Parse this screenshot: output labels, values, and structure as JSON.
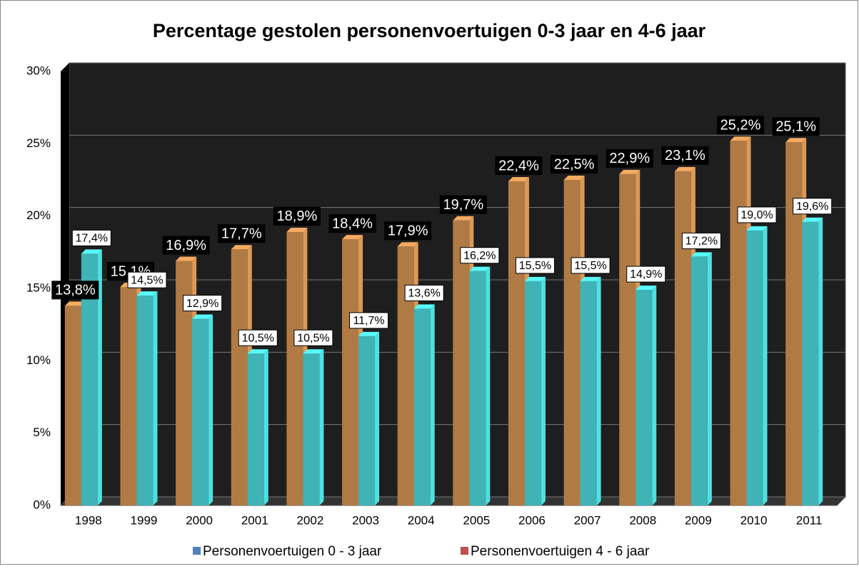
{
  "chart_data": {
    "type": "bar",
    "title": "Percentage gestolen personenvoertuigen 0-3 jaar en 4-6 jaar",
    "categories": [
      "1998",
      "1999",
      "2000",
      "2001",
      "2002",
      "2003",
      "2004",
      "2005",
      "2006",
      "2007",
      "2008",
      "2009",
      "2010",
      "2011"
    ],
    "series": [
      {
        "name": "Personenvoertuigen 0 - 3 jaar",
        "color": "#b07a45",
        "legend_color": "#4f81bd",
        "values": [
          13.8,
          15.1,
          16.9,
          17.7,
          18.9,
          18.4,
          17.9,
          19.7,
          22.4,
          22.5,
          22.9,
          23.1,
          25.2,
          25.1
        ],
        "value_labels": [
          "13,8%",
          "15,1%",
          "16,9%",
          "17,7%",
          "18,9%",
          "18,4%",
          "17,9%",
          "19,7%",
          "22,4%",
          "22,5%",
          "22,9%",
          "23,1%",
          "25,2%",
          "25,1%"
        ]
      },
      {
        "name": "Personenvoertuigen 4 - 6 jaar",
        "color": "#3fb3b5",
        "legend_color": "#c0504d",
        "values": [
          17.4,
          14.5,
          12.9,
          10.5,
          10.5,
          11.7,
          13.6,
          16.2,
          15.5,
          15.5,
          14.9,
          17.2,
          19.0,
          19.6
        ],
        "value_labels": [
          "17,4%",
          "14,5%",
          "12,9%",
          "10,5%",
          "10,5%",
          "11,7%",
          "13,6%",
          "16,2%",
          "15,5%",
          "15,5%",
          "14,9%",
          "17,2%",
          "19,0%",
          "19,6%"
        ]
      }
    ],
    "ylim": [
      0,
      30
    ],
    "yticks": [
      {
        "value": 0,
        "label": "0%"
      },
      {
        "value": 5,
        "label": "5%"
      },
      {
        "value": 10,
        "label": "10%"
      },
      {
        "value": 15,
        "label": "15%"
      },
      {
        "value": 20,
        "label": "20%"
      },
      {
        "value": 25,
        "label": "25%"
      },
      {
        "value": 30,
        "label": "30%"
      }
    ],
    "grid": true
  }
}
